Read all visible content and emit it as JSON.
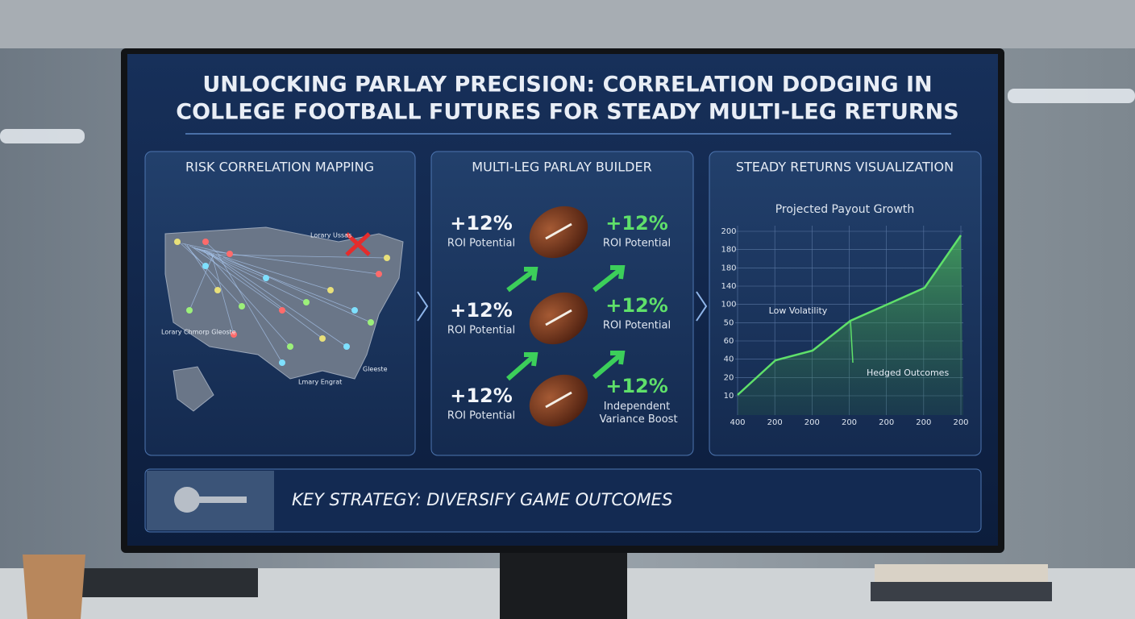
{
  "title": {
    "line1": "UNLOCKING PARLAY PRECISION: CORRELATION DODGING IN",
    "line2": "COLLEGE FOOTBALL FUTURES FOR STEADY MULTI-LEG RETURNS"
  },
  "panels": [
    {
      "heading": "RISK CORRELATION MAPPING",
      "map_labels": [
        "Lorary Ussas",
        "Lorary Chmorp Gleoste",
        "Lmary Engrat",
        "Gleeste"
      ]
    },
    {
      "heading": "MULTI-LEG PARLAY BUILDER",
      "items": [
        {
          "value": "+12%",
          "caption": "ROI Potential"
        },
        {
          "value": "+12%",
          "caption": "ROI Potential"
        },
        {
          "value": "+12%",
          "caption": "ROI Potential"
        },
        {
          "value": "+12%",
          "caption": "ROI Potential"
        },
        {
          "value": "+12%",
          "caption": "ROI Potential"
        },
        {
          "value": "+12%",
          "caption": "Independent Variance Boost"
        }
      ]
    },
    {
      "heading": "STEADY RETURNS VISUALIZATION",
      "chart_title": "Projected Payout Growth",
      "y_labels": [
        "200",
        "180",
        "180",
        "140",
        "100",
        "50",
        "60",
        "40",
        "20",
        "10"
      ],
      "x_labels": [
        "400",
        "200",
        "200",
        "200",
        "200",
        "200",
        "200"
      ],
      "annotations": [
        "Low Volatility",
        "Hedged Outcomes"
      ]
    }
  ],
  "footer": {
    "text": "KEY STRATEGY: DIVERSIFY GAME OUTCOMES"
  }
}
